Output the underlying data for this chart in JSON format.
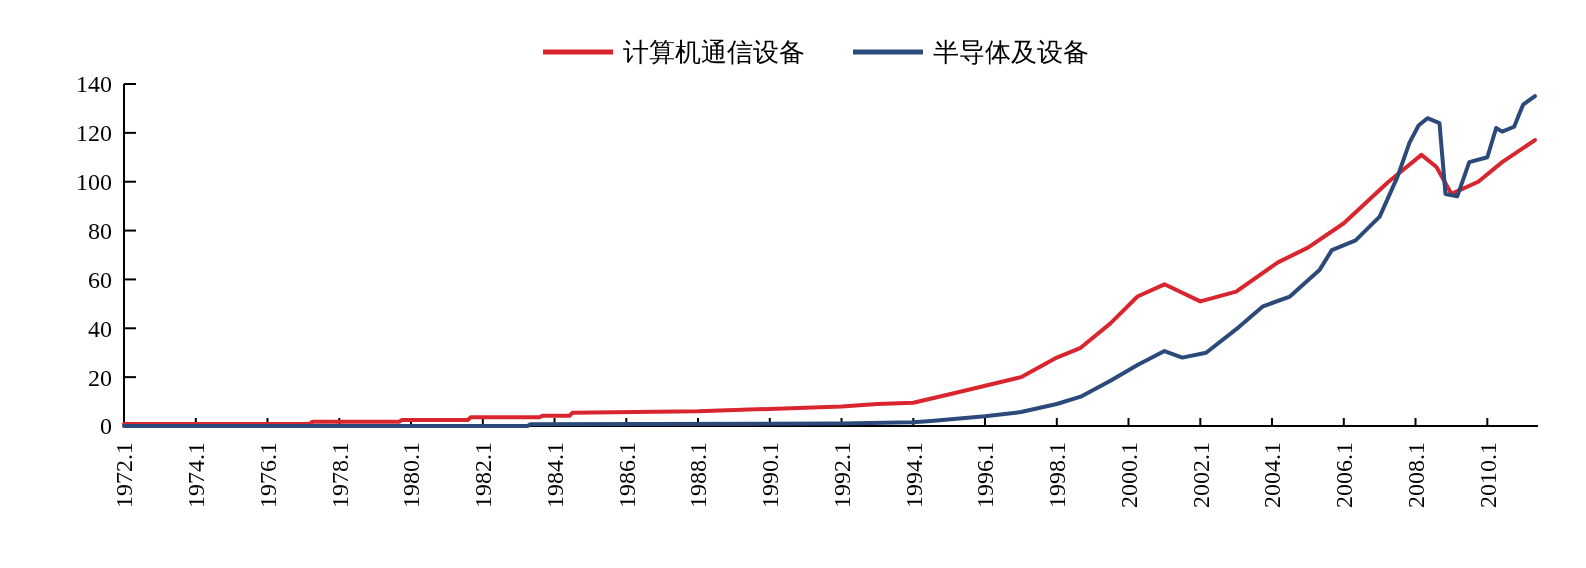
{
  "chart_data": {
    "type": "line",
    "legend": "top",
    "grid": false,
    "line_style": "solid",
    "marker": "none",
    "xlim": [
      "1972-01",
      "2011-06"
    ],
    "ylim": [
      0,
      140
    ],
    "yticks": [
      0,
      20,
      40,
      60,
      80,
      100,
      120,
      140
    ],
    "xticks": [
      {
        "value": "1972-01",
        "label": "1972.1"
      },
      {
        "value": "1974-01",
        "label": "1974.1"
      },
      {
        "value": "1976-01",
        "label": "1976.1"
      },
      {
        "value": "1978-01",
        "label": "1978.1"
      },
      {
        "value": "1980-01",
        "label": "1980.1"
      },
      {
        "value": "1982-01",
        "label": "1982.1"
      },
      {
        "value": "1984-01",
        "label": "1984.1"
      },
      {
        "value": "1986-01",
        "label": "1986.1"
      },
      {
        "value": "1988-01",
        "label": "1988.1"
      },
      {
        "value": "1990-01",
        "label": "1990.1"
      },
      {
        "value": "1992-01",
        "label": "1992.1"
      },
      {
        "value": "1994-01",
        "label": "1994.1"
      },
      {
        "value": "1996-01",
        "label": "1996.1"
      },
      {
        "value": "1998-01",
        "label": "1998.1"
      },
      {
        "value": "2000-01",
        "label": "2000.1"
      },
      {
        "value": "2002-01",
        "label": "2002.1"
      },
      {
        "value": "2004-01",
        "label": "2004.1"
      },
      {
        "value": "2006-01",
        "label": "2006.1"
      },
      {
        "value": "2008-01",
        "label": "2008.1"
      },
      {
        "value": "2010-01",
        "label": "2010.1"
      }
    ],
    "series": [
      {
        "name": "计算机通信设备",
        "color": "#d9262e",
        "x": [
          "1972-01",
          "1977-03",
          "1977-04",
          "1979-09",
          "1979-10",
          "1981-08",
          "1981-09",
          "1983-08",
          "1983-09",
          "1984-06",
          "1984-07",
          "1988-01",
          "1990-01",
          "1992-01",
          "1993-01",
          "1994-01",
          "1995-03",
          "1997-01",
          "1998-01",
          "1998-09",
          "1999-07",
          "2000-04",
          "2001-01",
          "2002-01",
          "2003-01",
          "2004-03",
          "2005-01",
          "2006-01",
          "2007-04",
          "2008-03",
          "2008-08",
          "2009-01",
          "2009-10",
          "2010-06",
          "2011-05"
        ],
        "values": [
          0.8,
          0.8,
          1.7,
          1.7,
          2.5,
          2.5,
          3.6,
          3.6,
          4.2,
          4.2,
          5.4,
          6,
          7,
          8,
          9,
          9.5,
          13.5,
          20,
          28,
          32,
          42,
          53,
          58,
          51,
          55,
          67,
          73,
          83,
          100,
          111,
          106,
          95,
          100,
          108,
          117
        ]
      },
      {
        "name": "半导体及设备",
        "color": "#2b4a7a",
        "x": [
          "1972-01",
          "1983-04",
          "1983-05",
          "1992-01",
          "1994-01",
          "1994-07",
          "1996-01",
          "1997-01",
          "1998-01",
          "1998-09",
          "1999-07",
          "2000-04",
          "2001-01",
          "2001-07",
          "2002-03",
          "2003-02",
          "2003-10",
          "2004-07",
          "2005-05",
          "2005-09",
          "2006-05",
          "2007-01",
          "2007-07",
          "2007-11",
          "2008-02",
          "2008-05",
          "2008-09",
          "2008-11",
          "2009-03",
          "2009-07",
          "2010-01",
          "2010-04",
          "2010-06",
          "2010-10",
          "2011-01",
          "2011-05"
        ],
        "values": [
          0,
          0,
          0.7,
          1,
          1.5,
          2,
          4,
          5.7,
          9,
          12,
          18.5,
          25,
          30.7,
          28,
          30,
          40.6,
          49,
          53,
          64,
          72,
          76,
          85.7,
          102,
          116,
          123,
          126,
          124,
          95,
          94,
          108,
          110,
          122,
          120.5,
          122.5,
          131.6,
          135
        ]
      }
    ]
  }
}
